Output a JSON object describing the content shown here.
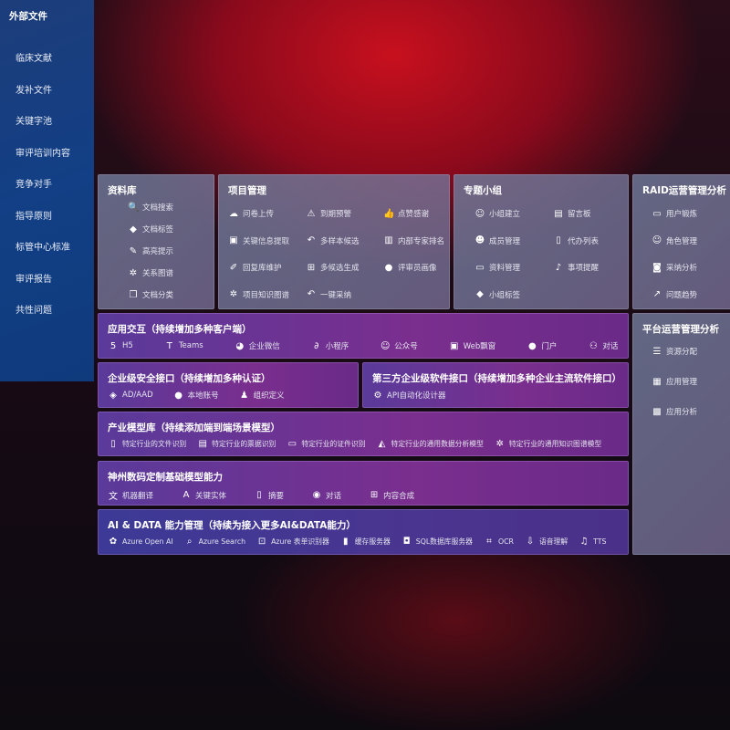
{
  "left": {
    "title": "外部文件",
    "items": [
      "临床文献",
      "发补文件",
      "关键字池",
      "审评培训内容",
      "竞争对手",
      "指导原则",
      "标管中心标准",
      "审评报告",
      "共性问题"
    ]
  },
  "library": {
    "title": "资料库",
    "items": [
      {
        "label": "文档搜索",
        "icon": "document-search-icon"
      },
      {
        "label": "文档标签",
        "icon": "tag-icon"
      },
      {
        "label": "高亮提示",
        "icon": "pen-icon"
      },
      {
        "label": "关系图谱",
        "icon": "graph-icon"
      },
      {
        "label": "文档分类",
        "icon": "document-copy-icon"
      }
    ]
  },
  "project": {
    "title": "项目管理",
    "items": [
      {
        "label": "问卷上传",
        "icon": "cloud-upload-icon"
      },
      {
        "label": "到期预警",
        "icon": "alarm-icon"
      },
      {
        "label": "点赞感谢",
        "icon": "thumbs-up-icon"
      },
      {
        "label": "关键信息提取",
        "icon": "window-icon"
      },
      {
        "label": "多样本候选",
        "icon": "reply-icon"
      },
      {
        "label": "内部专家排名",
        "icon": "ranking-icon"
      },
      {
        "label": "回复库维护",
        "icon": "edit-icon"
      },
      {
        "label": "多候选生成",
        "icon": "puzzle-icon"
      },
      {
        "label": "评审员画像",
        "icon": "user-icon"
      },
      {
        "label": "项目知识图谱",
        "icon": "graph-icon"
      },
      {
        "label": "一键采纳",
        "icon": "reply-icon"
      }
    ]
  },
  "group": {
    "title": "专题小组",
    "items": [
      {
        "label": "小组建立",
        "icon": "users-icon"
      },
      {
        "label": "留言板",
        "icon": "bbs-icon"
      },
      {
        "label": "成员管理",
        "icon": "user-add-icon"
      },
      {
        "label": "代办列表",
        "icon": "clipboard-icon"
      },
      {
        "label": "资料管理",
        "icon": "folder-icon"
      },
      {
        "label": "事项提醒",
        "icon": "bell-icon"
      },
      {
        "label": "小组标签",
        "icon": "tag-icon"
      }
    ]
  },
  "raid": {
    "title": "RAID运营管理分析",
    "items": [
      {
        "label": "用户锻炼",
        "icon": "id-card-icon"
      },
      {
        "label": "角色管理",
        "icon": "users-icon"
      },
      {
        "label": "采纳分析",
        "icon": "qa-icon"
      },
      {
        "label": "问题趋势",
        "icon": "trend-icon"
      }
    ]
  },
  "platform": {
    "title": "平台运营管理分析",
    "items": [
      {
        "label": "资源分配",
        "icon": "checklist-icon"
      },
      {
        "label": "应用管理",
        "icon": "apps-icon"
      },
      {
        "label": "应用分析",
        "icon": "analytics-icon"
      }
    ]
  },
  "app": {
    "title": "应用交互（持续增加多种客户端）",
    "items": [
      {
        "label": "H5",
        "icon": "html5-icon"
      },
      {
        "label": "Teams",
        "icon": "teams-icon"
      },
      {
        "label": "企业微信",
        "icon": "wechat-icon"
      },
      {
        "label": "小程序",
        "icon": "miniprogram-icon"
      },
      {
        "label": "公众号",
        "icon": "users-icon"
      },
      {
        "label": "Web飘窗",
        "icon": "window-icon"
      },
      {
        "label": "门户",
        "icon": "user-icon"
      },
      {
        "label": "对话",
        "icon": "chat-users-icon"
      }
    ]
  },
  "security": {
    "title": "企业级安全接口（持续增加多种认证）",
    "items": [
      {
        "label": "AD/AAD",
        "icon": "diamond-icon"
      },
      {
        "label": "本地账号",
        "icon": "user-icon"
      },
      {
        "label": "组织定义",
        "icon": "org-icon"
      }
    ]
  },
  "third": {
    "title": "第三方企业级软件接口（持续增加多种企业主流软件接口）",
    "items": [
      {
        "label": "API自动化设计器",
        "icon": "gear-icon"
      }
    ]
  },
  "industry": {
    "title": "产业模型库（持续添加端到端场景模型）",
    "items": [
      {
        "label": "特定行业的文件识别",
        "icon": "file-icon"
      },
      {
        "label": "特定行业的票据识别",
        "icon": "receipt-icon"
      },
      {
        "label": "特定行业的证件识别",
        "icon": "id-card-icon"
      },
      {
        "label": "特定行业的通用数据分析模型",
        "icon": "chart-icon"
      },
      {
        "label": "特定行业的通用知识图谱模型",
        "icon": "graph-icon"
      }
    ]
  },
  "base": {
    "title": "神州数码定制基础模型能力",
    "items": [
      {
        "label": "机器翻译",
        "icon": "translate-icon"
      },
      {
        "label": "关键实体",
        "icon": "entity-icon"
      },
      {
        "label": "摘要",
        "icon": "document-icon"
      },
      {
        "label": "对话",
        "icon": "chat-icon"
      },
      {
        "label": "内容合成",
        "icon": "puzzle-icon"
      }
    ]
  },
  "aidata": {
    "title": "AI & DATA 能力管理（持续为接入更多AI&DATA能力）",
    "items": [
      {
        "label": "Azure Open AI",
        "icon": "openai-icon"
      },
      {
        "label": "Azure Search",
        "icon": "search-icon"
      },
      {
        "label": "Azure 表单识别器",
        "icon": "form-icon"
      },
      {
        "label": "缓存服务器",
        "icon": "cache-icon"
      },
      {
        "label": "SQL数据库服务器",
        "icon": "database-icon"
      },
      {
        "label": "OCR",
        "icon": "ocr-icon"
      },
      {
        "label": "语音理解",
        "icon": "speech-icon"
      },
      {
        "label": "TTS",
        "icon": "tts-icon"
      }
    ]
  }
}
